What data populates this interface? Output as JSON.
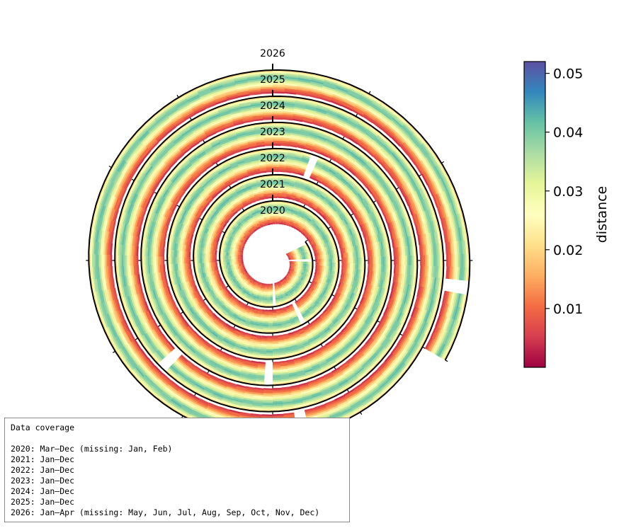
{
  "chart_data": {
    "type": "spiral_heatmap",
    "description_axis": "time (years, spiral outward)",
    "years": [
      {
        "label": "2020",
        "turn_index": 0
      },
      {
        "label": "2021",
        "turn_index": 1
      },
      {
        "label": "2022",
        "turn_index": 2
      },
      {
        "label": "2023",
        "turn_index": 3
      },
      {
        "label": "2024",
        "turn_index": 4
      },
      {
        "label": "2025",
        "turn_index": 5
      },
      {
        "label": "2026",
        "turn_index": 6
      }
    ],
    "start": "2020-03",
    "end": "2026-04",
    "colormap": "Spectral",
    "colorbar": {
      "label": "distance",
      "range": [
        0.0,
        0.052
      ],
      "ticks": [
        "0.01",
        "0.02",
        "0.03",
        "0.04",
        "0.05"
      ],
      "tick_values": [
        0.01,
        0.02,
        0.03,
        0.04,
        0.05
      ]
    },
    "radial_profile_approx": {
      "fraction_from_inner_edge": [
        0.0,
        0.08,
        0.2,
        0.35,
        0.5,
        0.65,
        0.8,
        0.92,
        1.0
      ],
      "distance": [
        0.003,
        0.008,
        0.012,
        0.022,
        0.032,
        0.042,
        0.036,
        0.026,
        0.018
      ]
    }
  },
  "coverage": {
    "lines": [
      "Data coverage",
      "",
      "2020: Mar–Dec (missing: Jan, Feb)",
      "2021: Jan–Dec",
      "2022: Jan–Dec",
      "2023: Jan–Dec",
      "2024: Jan–Dec",
      "2025: Jan–Dec",
      "2026: Jan–Apr (missing: May, Jun, Jul, Aug, Sep, Oct, Nov, Dec)"
    ]
  }
}
